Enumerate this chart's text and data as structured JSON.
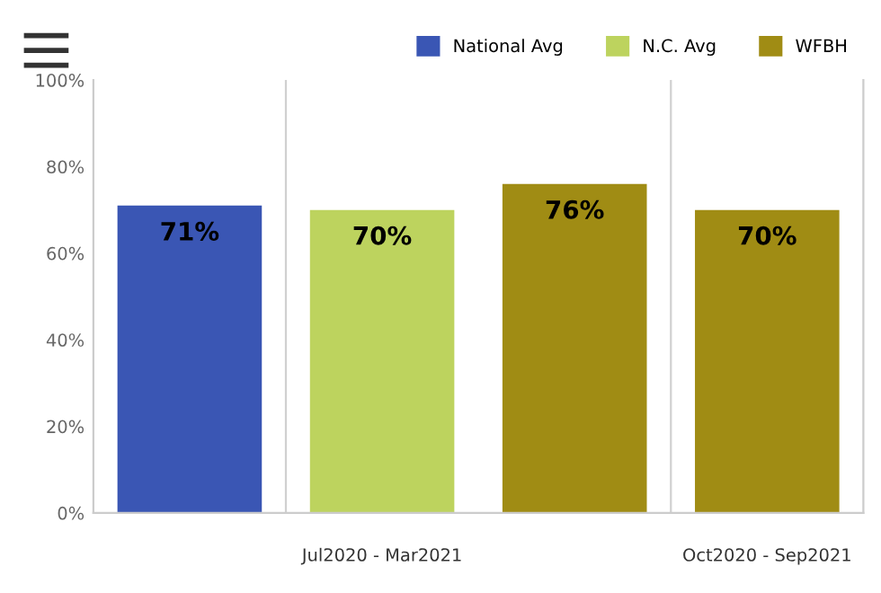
{
  "chart_data": {
    "type": "bar",
    "categories": [
      null,
      "Jul2020 - Mar2021",
      null,
      "Oct2020 - Sep2021"
    ],
    "series": [
      {
        "name": "National Avg",
        "color": "#3a56b4",
        "values": [
          71,
          null,
          null,
          null
        ]
      },
      {
        "name": "N.C. Avg",
        "color": "#bdd35e",
        "values": [
          null,
          70,
          null,
          null
        ]
      },
      {
        "name": "WFBH",
        "color": "#a08c14",
        "values": [
          null,
          null,
          76,
          70
        ]
      }
    ],
    "ylim": [
      0,
      100
    ],
    "yticks": [
      {
        "value": 0,
        "label": "0%"
      },
      {
        "value": 20,
        "label": "20%"
      },
      {
        "value": 40,
        "label": "40%"
      },
      {
        "value": 60,
        "label": "60%"
      },
      {
        "value": 80,
        "label": "80%"
      },
      {
        "value": 100,
        "label": "100%"
      }
    ],
    "value_labels": [
      "71%",
      "70%",
      "76%",
      "70%"
    ],
    "grid": false,
    "legend": "top right"
  }
}
